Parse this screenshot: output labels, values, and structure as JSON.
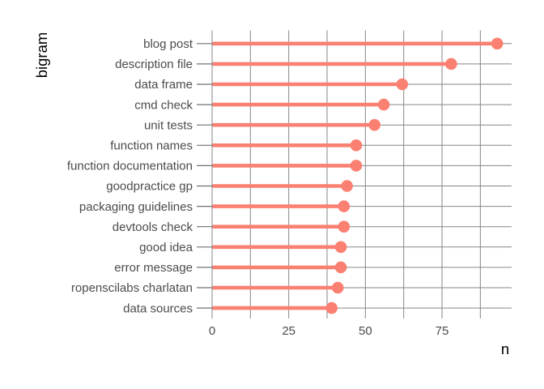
{
  "chart_data": {
    "type": "bar",
    "style": "lollipop",
    "orientation": "horizontal",
    "title": "",
    "xlabel": "n",
    "ylabel": "bigram",
    "categories": [
      "blog post",
      "description file",
      "data frame",
      "cmd check",
      "unit tests",
      "function names",
      "function documentation",
      "goodpractice gp",
      "packaging guidelines",
      "devtools check",
      "good idea",
      "error message",
      "ropenscilabs charlatan",
      "data sources"
    ],
    "values": [
      93,
      78,
      62,
      56,
      53,
      47,
      47,
      44,
      43,
      43,
      42,
      42,
      41,
      39
    ],
    "x_ticks": [
      {
        "value": 0,
        "label": "0"
      },
      {
        "value": 25,
        "label": "25"
      },
      {
        "value": 50,
        "label": "50"
      },
      {
        "value": 75,
        "label": "75"
      }
    ],
    "x_gridlines": [
      0,
      12.5,
      25,
      37.5,
      50,
      62.5,
      75,
      87.5
    ],
    "xlim": [
      0,
      97.7
    ],
    "grid": true,
    "legend": false,
    "colors": {
      "lollipop": "#FA8072",
      "gridline": "#868686",
      "tick": "#707070",
      "axis_text": "#4b4b4b",
      "axis_title": "#000000",
      "background": "#ffffff"
    }
  }
}
